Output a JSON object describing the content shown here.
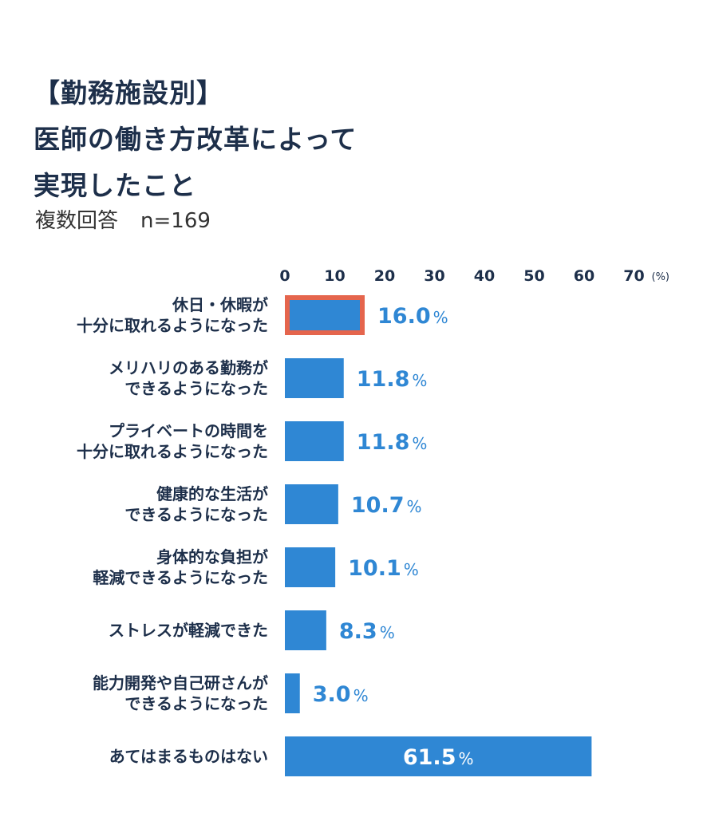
{
  "header": {
    "title_lines": [
      "【勤務施設別】",
      "医師の働き方改革によって",
      "実現したこと"
    ],
    "subtitle": "複数回答",
    "sample": "n=169"
  },
  "colors": {
    "bar": "#2f87d4",
    "highlight_border": "#e5654d",
    "text": "#1d2f4a",
    "value_text": "#2f87d4",
    "inside_value_text": "#ffffff"
  },
  "chart_data": {
    "type": "bar",
    "orientation": "horizontal",
    "axis_unit": "(%)",
    "xlim": [
      0,
      70
    ],
    "ticks": [
      0,
      10,
      20,
      30,
      40,
      50,
      60,
      70
    ],
    "tick_labels": [
      "0",
      "10",
      "20",
      "30",
      "40",
      "50",
      "60",
      "70"
    ],
    "percent_sign": "%",
    "highlighted_index": 0,
    "categories": [
      [
        "休日・休暇が",
        "十分に取れるようになった"
      ],
      [
        "メリハリのある勤務が",
        "できるようになった"
      ],
      [
        "プライベートの時間を",
        "十分に取れるようになった"
      ],
      [
        "健康的な生活が",
        "できるようになった"
      ],
      [
        "身体的な負担が",
        "軽減できるようになった"
      ],
      [
        "ストレスが軽減できた"
      ],
      [
        "能力開発や自己研さんが",
        "できるようになった"
      ],
      [
        "あてはまるものはない"
      ]
    ],
    "values": [
      16.0,
      11.8,
      11.8,
      10.7,
      10.1,
      8.3,
      3.0,
      61.5
    ],
    "value_labels": [
      "16.0",
      "11.8",
      "11.8",
      "10.7",
      "10.1",
      "8.3",
      "3.0",
      "61.5"
    ]
  }
}
